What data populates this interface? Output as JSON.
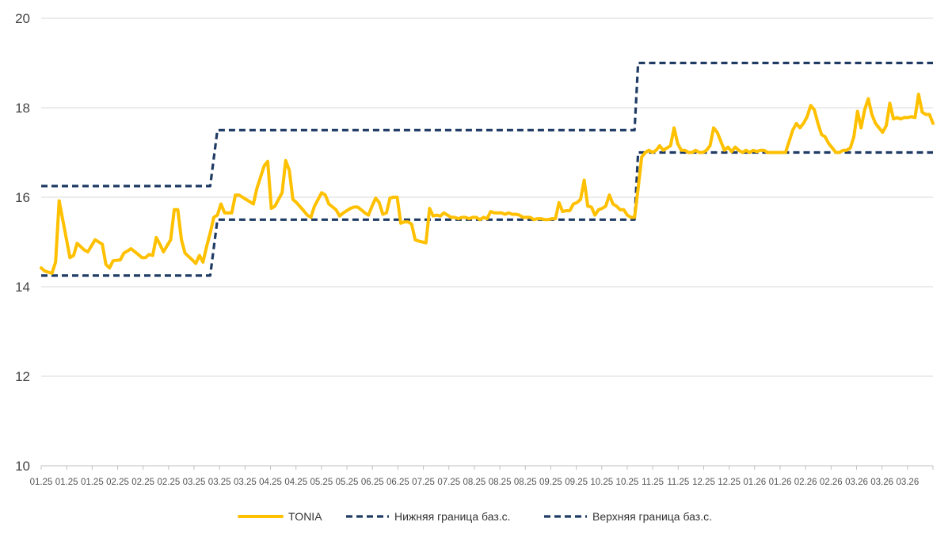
{
  "chart_data": {
    "type": "line",
    "title": "",
    "xlabel": "",
    "ylabel": "",
    "ylim": [
      10,
      20
    ],
    "yticks": [
      10,
      12,
      14,
      16,
      18,
      20
    ],
    "grid": "horizontal",
    "legend_position": "bottom",
    "x_tick_labels": [
      "01.25",
      "01.25",
      "01.25",
      "02.25",
      "02.25",
      "02.25",
      "03.25",
      "03.25",
      "03.25",
      "04.25",
      "04.25",
      "05.25",
      "05.25",
      "06.25",
      "06.25",
      "07.25",
      "07.25",
      "08.25",
      "08.25",
      "08.25",
      "09.25",
      "09.25",
      "10.25",
      "10.25",
      "11.25",
      "11.25",
      "12.25",
      "12.25",
      "01.26",
      "01.26",
      "02.26",
      "02.26",
      "03.26",
      "03.26",
      "03.26"
    ],
    "series": [
      {
        "name": "TONIA",
        "color": "#FFC000",
        "style": "solid",
        "points": [
          [
            0,
            14.42
          ],
          [
            1,
            14.35
          ],
          [
            3,
            14.3
          ],
          [
            4,
            14.55
          ],
          [
            5,
            15.92
          ],
          [
            6,
            15.5
          ],
          [
            8,
            14.65
          ],
          [
            9,
            14.7
          ],
          [
            10,
            14.97
          ],
          [
            12,
            14.82
          ],
          [
            13,
            14.78
          ],
          [
            15,
            15.05
          ],
          [
            17,
            14.95
          ],
          [
            18,
            14.5
          ],
          [
            19,
            14.42
          ],
          [
            20,
            14.58
          ],
          [
            22,
            14.6
          ],
          [
            23,
            14.75
          ],
          [
            24,
            14.8
          ],
          [
            25,
            14.85
          ],
          [
            27,
            14.72
          ],
          [
            28,
            14.65
          ],
          [
            29,
            14.65
          ],
          [
            30,
            14.72
          ],
          [
            31,
            14.7
          ],
          [
            32,
            15.1
          ],
          [
            33,
            14.95
          ],
          [
            34,
            14.78
          ],
          [
            36,
            15.05
          ],
          [
            37,
            15.72
          ],
          [
            38,
            15.72
          ],
          [
            39,
            15.05
          ],
          [
            40,
            14.75
          ],
          [
            42,
            14.6
          ],
          [
            43,
            14.52
          ],
          [
            44,
            14.7
          ],
          [
            45,
            14.55
          ],
          [
            46,
            14.9
          ],
          [
            47,
            15.2
          ],
          [
            48,
            15.55
          ],
          [
            49,
            15.6
          ],
          [
            50,
            15.85
          ],
          [
            51,
            15.65
          ],
          [
            53,
            15.65
          ],
          [
            54,
            16.05
          ],
          [
            55,
            16.05
          ],
          [
            57,
            15.95
          ],
          [
            58,
            15.9
          ],
          [
            59,
            15.85
          ],
          [
            60,
            16.2
          ],
          [
            62,
            16.7
          ],
          [
            63,
            16.8
          ],
          [
            64,
            15.75
          ],
          [
            65,
            15.8
          ],
          [
            67,
            16.1
          ],
          [
            68,
            16.82
          ],
          [
            69,
            16.6
          ],
          [
            70,
            15.95
          ],
          [
            71,
            15.88
          ],
          [
            73,
            15.7
          ],
          [
            74,
            15.6
          ],
          [
            75,
            15.55
          ],
          [
            76,
            15.8
          ],
          [
            77,
            15.95
          ],
          [
            78,
            16.1
          ],
          [
            79,
            16.05
          ],
          [
            80,
            15.85
          ],
          [
            82,
            15.72
          ],
          [
            83,
            15.58
          ],
          [
            84,
            15.65
          ],
          [
            85,
            15.7
          ],
          [
            86,
            15.75
          ],
          [
            87,
            15.78
          ],
          [
            88,
            15.78
          ],
          [
            89,
            15.72
          ],
          [
            90,
            15.65
          ],
          [
            91,
            15.6
          ],
          [
            92,
            15.8
          ],
          [
            93,
            15.98
          ],
          [
            94,
            15.88
          ],
          [
            95,
            15.62
          ],
          [
            96,
            15.65
          ],
          [
            97,
            15.98
          ],
          [
            98,
            16.0
          ],
          [
            99,
            16.0
          ],
          [
            100,
            15.42
          ],
          [
            101,
            15.45
          ],
          [
            102,
            15.45
          ],
          [
            103,
            15.4
          ],
          [
            104,
            15.05
          ],
          [
            105,
            15.02
          ],
          [
            106,
            15.0
          ],
          [
            107,
            14.98
          ],
          [
            108,
            15.75
          ],
          [
            109,
            15.58
          ],
          [
            110,
            15.6
          ],
          [
            111,
            15.58
          ],
          [
            112,
            15.65
          ],
          [
            113,
            15.6
          ],
          [
            114,
            15.55
          ],
          [
            115,
            15.55
          ],
          [
            116,
            15.52
          ],
          [
            117,
            15.55
          ],
          [
            118,
            15.55
          ],
          [
            119,
            15.52
          ],
          [
            120,
            15.55
          ],
          [
            121,
            15.55
          ],
          [
            122,
            15.5
          ],
          [
            123,
            15.55
          ],
          [
            124,
            15.52
          ],
          [
            125,
            15.68
          ],
          [
            126,
            15.65
          ],
          [
            127,
            15.65
          ],
          [
            128,
            15.65
          ],
          [
            129,
            15.62
          ],
          [
            130,
            15.65
          ],
          [
            131,
            15.62
          ],
          [
            132,
            15.62
          ],
          [
            133,
            15.6
          ],
          [
            134,
            15.55
          ],
          [
            135,
            15.55
          ],
          [
            136,
            15.55
          ],
          [
            137,
            15.5
          ],
          [
            138,
            15.52
          ],
          [
            139,
            15.52
          ],
          [
            140,
            15.5
          ],
          [
            141,
            15.5
          ],
          [
            142,
            15.52
          ],
          [
            143,
            15.52
          ],
          [
            144,
            15.88
          ],
          [
            145,
            15.68
          ],
          [
            146,
            15.7
          ],
          [
            147,
            15.7
          ],
          [
            148,
            15.85
          ],
          [
            149,
            15.88
          ],
          [
            150,
            15.95
          ],
          [
            151,
            16.38
          ],
          [
            152,
            15.8
          ],
          [
            153,
            15.78
          ],
          [
            154,
            15.6
          ],
          [
            155,
            15.72
          ],
          [
            156,
            15.75
          ],
          [
            157,
            15.8
          ],
          [
            158,
            16.05
          ],
          [
            159,
            15.85
          ],
          [
            160,
            15.8
          ],
          [
            161,
            15.72
          ],
          [
            162,
            15.72
          ],
          [
            163,
            15.6
          ],
          [
            164,
            15.55
          ],
          [
            165,
            15.55
          ],
          [
            166,
            16.2
          ],
          [
            167,
            16.9
          ],
          [
            168,
            17.0
          ],
          [
            169,
            17.05
          ],
          [
            170,
            17.0
          ],
          [
            171,
            17.05
          ],
          [
            172,
            17.15
          ],
          [
            173,
            17.05
          ],
          [
            174,
            17.1
          ],
          [
            175,
            17.15
          ],
          [
            176,
            17.55
          ],
          [
            177,
            17.2
          ],
          [
            178,
            17.05
          ],
          [
            179,
            17.05
          ],
          [
            180,
            17.0
          ],
          [
            181,
            17.0
          ],
          [
            182,
            17.05
          ],
          [
            183,
            17.0
          ],
          [
            184,
            17.0
          ],
          [
            185,
            17.05
          ],
          [
            186,
            17.15
          ],
          [
            187,
            17.55
          ],
          [
            188,
            17.45
          ],
          [
            189,
            17.25
          ],
          [
            190,
            17.05
          ],
          [
            191,
            17.12
          ],
          [
            192,
            17.02
          ],
          [
            193,
            17.12
          ],
          [
            194,
            17.05
          ],
          [
            195,
            17.0
          ],
          [
            196,
            17.05
          ],
          [
            197,
            17.0
          ],
          [
            198,
            17.05
          ],
          [
            199,
            17.02
          ],
          [
            200,
            17.05
          ],
          [
            201,
            17.05
          ],
          [
            202,
            17.0
          ],
          [
            203,
            17.0
          ],
          [
            204,
            17.0
          ],
          [
            205,
            17.0
          ],
          [
            206,
            17.0
          ],
          [
            207,
            17.0
          ],
          [
            208,
            17.25
          ],
          [
            209,
            17.5
          ],
          [
            210,
            17.65
          ],
          [
            211,
            17.55
          ],
          [
            212,
            17.65
          ],
          [
            213,
            17.8
          ],
          [
            214,
            18.05
          ],
          [
            215,
            17.95
          ],
          [
            216,
            17.65
          ],
          [
            217,
            17.4
          ],
          [
            218,
            17.35
          ],
          [
            219,
            17.2
          ],
          [
            220,
            17.1
          ],
          [
            221,
            17.0
          ],
          [
            222,
            17.0
          ],
          [
            223,
            17.05
          ],
          [
            224,
            17.05
          ],
          [
            225,
            17.1
          ],
          [
            226,
            17.35
          ],
          [
            227,
            17.92
          ],
          [
            228,
            17.55
          ],
          [
            229,
            17.95
          ],
          [
            230,
            18.2
          ],
          [
            231,
            17.85
          ],
          [
            232,
            17.65
          ],
          [
            233,
            17.55
          ],
          [
            234,
            17.45
          ],
          [
            235,
            17.6
          ],
          [
            236,
            18.1
          ],
          [
            237,
            17.75
          ],
          [
            238,
            17.78
          ],
          [
            239,
            17.75
          ],
          [
            240,
            17.78
          ],
          [
            241,
            17.78
          ],
          [
            242,
            17.8
          ],
          [
            243,
            17.78
          ],
          [
            244,
            18.3
          ],
          [
            245,
            17.9
          ],
          [
            246,
            17.85
          ],
          [
            247,
            17.85
          ],
          [
            248,
            17.65
          ]
        ]
      },
      {
        "name": "Нижняя граница баз.с.",
        "color": "#1F3B64",
        "style": "dashed",
        "points": [
          [
            0,
            14.25
          ],
          [
            47,
            14.25
          ],
          [
            49,
            15.5
          ],
          [
            165,
            15.5
          ],
          [
            166,
            17.0
          ],
          [
            248,
            17.0
          ]
        ]
      },
      {
        "name": "Верхняя граница баз.с.",
        "color": "#1F3B64",
        "style": "dashed",
        "points": [
          [
            0,
            16.25
          ],
          [
            47,
            16.25
          ],
          [
            49,
            17.5
          ],
          [
            165,
            17.5
          ],
          [
            166,
            19.0
          ],
          [
            248,
            19.0
          ]
        ]
      }
    ]
  }
}
